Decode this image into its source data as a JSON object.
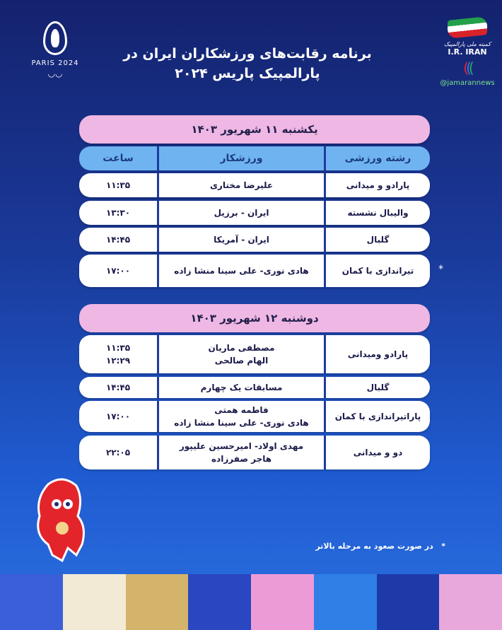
{
  "header": {
    "title_line1": "برنامه رقابت‌های ورزشکاران ایران در",
    "title_line2": "پارالمپیک پاریس ۲۰۲۴"
  },
  "logos": {
    "paris": "PARIS 2024",
    "iran": "I.R. IRAN",
    "iran_calligraphy": "کمیته ملی پارالمپیک",
    "handle": "@jamarannews"
  },
  "columns": {
    "sport": "رشته ورزشی",
    "athlete": "ورزشکار",
    "time": "ساعت"
  },
  "days": [
    {
      "title": "یکشنبه ۱۱ شهریور ۱۴۰۳",
      "rows": [
        {
          "sport": "پارادو و میدانی",
          "athletes": [
            "علیرضا مختاری"
          ],
          "times": [
            "۱۱:۳۵"
          ]
        },
        {
          "sport": "والیبال نشسته",
          "athletes": [
            "ایران - برزیل"
          ],
          "times": [
            "۱۳:۳۰"
          ]
        },
        {
          "sport": "گلبال",
          "athletes": [
            "ایران - آمریکا"
          ],
          "times": [
            "۱۴:۴۵"
          ]
        },
        {
          "sport": "تیراندازی با کمان",
          "athletes": [
            "هادی نوری- علی سینا منشا زاده"
          ],
          "times": [
            "۱۷:۰۰"
          ],
          "star": "*"
        }
      ]
    },
    {
      "title": "دوشنبه ۱۲ شهریور ۱۴۰۳",
      "rows": [
        {
          "sport": "پارادو ومیدانی",
          "athletes": [
            "مصطفی ماریان",
            "الهام صالحی"
          ],
          "times": [
            "۱۱:۳۵",
            "۱۲:۲۹"
          ]
        },
        {
          "sport": "گلبال",
          "athletes": [
            "مسابقات یک چهارم"
          ],
          "times": [
            "۱۴:۴۵"
          ]
        },
        {
          "sport": "پاراتیراندازی با کمان",
          "athletes": [
            "فاطمه همتی",
            "هادی نوری- علی سینا منشا زاده"
          ],
          "times": [
            "۱۷:۰۰"
          ]
        },
        {
          "sport": "دو و میدانی",
          "athletes": [
            "مهدی اولاد- امیرحسین علیپور",
            "هاجر صفرزاده"
          ],
          "times": [
            "۲۲:۰۵"
          ]
        }
      ]
    }
  ],
  "footnote": {
    "star": "*",
    "text": "در صورت صعود به مرحله بالاتر"
  },
  "colors": {
    "day_bar": "#efb7e4",
    "col_header": "#6fb4f0",
    "divider": "#1d3b9e"
  }
}
